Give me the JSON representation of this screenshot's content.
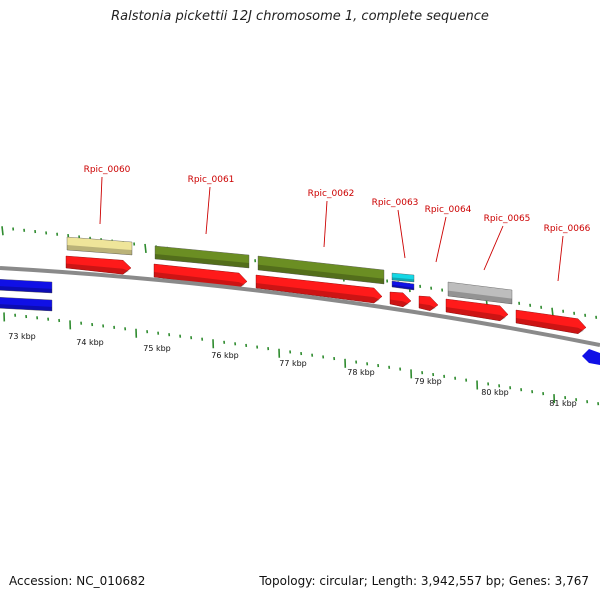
{
  "title": "Ralstonia pickettii 12J chromosome 1, complete sequence",
  "footer": {
    "accession": "Accession: NC_010682",
    "summary": "Topology: circular; Length: 3,942,557 bp; Genes: 3,767"
  },
  "colors": {
    "cds": "#ff1a1a",
    "green_feature": "#6b8e23",
    "yellow_feature": "#efe59a",
    "gray_feature": "#bdbdbd",
    "cyan_feature": "#14d8e6",
    "blue_feature": "#1010e6",
    "backbone": "#8a8a8a",
    "tick": "#2e8b2e",
    "label": "#cc0000"
  },
  "kbp_labels": [
    "73 kbp",
    "74 kbp",
    "75 kbp",
    "76 kbp",
    "77 kbp",
    "78 kbp",
    "79 kbp",
    "80 kbp",
    "81 kbp"
  ],
  "genes": [
    {
      "name": "Rpic_0060"
    },
    {
      "name": "Rpic_0061"
    },
    {
      "name": "Rpic_0062"
    },
    {
      "name": "Rpic_0063"
    },
    {
      "name": "Rpic_0064"
    },
    {
      "name": "Rpic_0065"
    },
    {
      "name": "Rpic_0066"
    }
  ]
}
